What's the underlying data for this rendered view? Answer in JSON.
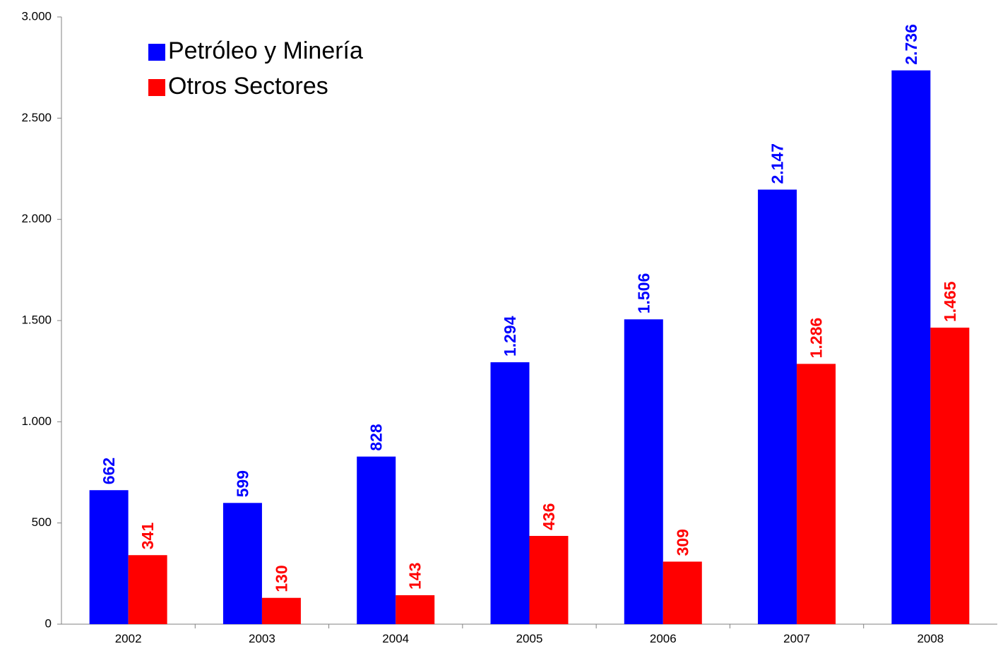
{
  "chart_data": {
    "type": "bar",
    "categories": [
      "2002",
      "2003",
      "2004",
      "2005",
      "2006",
      "2007",
      "2008"
    ],
    "series": [
      {
        "name": "Petróleo y Minería",
        "color": "#0000ff",
        "values": [
          662,
          599,
          828,
          1294,
          1506,
          2147,
          2736
        ],
        "value_labels": [
          "662",
          "599",
          "828",
          "1.294",
          "1.506",
          "2.147",
          "2.736"
        ]
      },
      {
        "name": "Otros Sectores",
        "color": "#ff0000",
        "values": [
          341,
          130,
          143,
          436,
          309,
          1286,
          1465
        ],
        "value_labels": [
          "341",
          "130",
          "143",
          "436",
          "309",
          "1.286",
          "1.465"
        ]
      }
    ],
    "ylim": [
      0,
      3000
    ],
    "yticks": [
      0,
      500,
      {
        "value": 1000,
        "label": "1.000"
      },
      {
        "value": 1500,
        "label": "1.500"
      },
      {
        "value": 2000,
        "label": "2.000"
      },
      {
        "value": 2500,
        "label": "2.500"
      },
      {
        "value": 3000,
        "label": "3.000"
      }
    ],
    "grid": false,
    "legend": "top-left"
  }
}
